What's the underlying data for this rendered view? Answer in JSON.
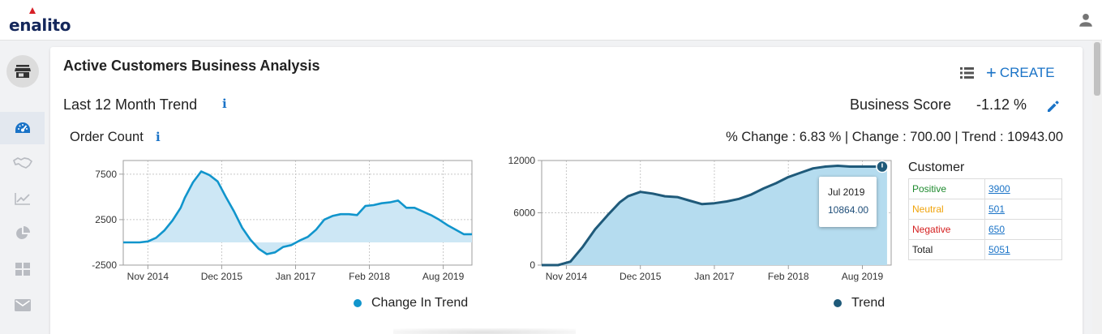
{
  "app": {
    "logo": "enalito",
    "icons": {
      "user": "user-icon",
      "store": "store-icon"
    }
  },
  "sidebar": {
    "items": [
      {
        "name": "dashboard",
        "icon": "speedometer-icon",
        "active": true
      },
      {
        "name": "deals",
        "icon": "handshake-icon",
        "active": false
      },
      {
        "name": "analytics",
        "icon": "line-chart-icon",
        "active": false
      },
      {
        "name": "reports",
        "icon": "pie-chart-icon",
        "active": false
      },
      {
        "name": "widgets",
        "icon": "grid-icon",
        "active": false
      },
      {
        "name": "mail",
        "icon": "mail-icon",
        "active": false
      }
    ]
  },
  "page": {
    "title": "Active Customers Business Analysis",
    "create_label": "CREATE",
    "section_title": "Last 12 Month Trend",
    "business_score_label": "Business Score",
    "business_score_value": "-1.12 %",
    "order_count_title": "Order Count",
    "stats_line": "% Change : 6.83 % | Change : 700.00 | Trend : 10943.00"
  },
  "colors": {
    "accent": "#1a73c7",
    "change_series": "#1195cc",
    "change_fill": "#cde7f5",
    "trend_series": "#1f5a7a",
    "trend_fill": "#b5dcef",
    "positive": "#1e8a2e",
    "neutral": "#f0a30a",
    "negative": "#d41e1e"
  },
  "chart_data": [
    {
      "type": "area",
      "x_ticks": [
        "Nov 2014",
        "Dec 2015",
        "Jan 2017",
        "Feb 2018",
        "Aug 2019"
      ],
      "y_ticks": [
        "7500",
        "2500",
        "-2500"
      ],
      "ylim": [
        -2500,
        9000
      ],
      "grid": true,
      "legend": "bottom",
      "series": [
        {
          "name": "Change In Trend",
          "x": [
            0,
            2,
            4,
            6,
            8,
            10,
            12,
            14,
            15,
            17,
            19,
            21,
            23,
            25,
            27,
            29,
            31,
            33,
            35,
            37,
            39,
            41,
            43,
            45,
            47,
            49,
            51,
            53,
            55,
            57,
            59,
            61,
            63,
            65,
            67,
            68,
            69,
            71,
            72,
            73,
            75,
            77,
            79,
            81,
            83,
            85
          ],
          "values": [
            0,
            0,
            0,
            100,
            500,
            1300,
            2400,
            3800,
            4900,
            6600,
            7800,
            7400,
            6700,
            5000,
            3400,
            1600,
            300,
            -700,
            -1300,
            -1100,
            -500,
            -300,
            200,
            600,
            1400,
            2500,
            2900,
            3100,
            3100,
            3000,
            4000,
            4100,
            4300,
            4400,
            4600,
            4200,
            3800,
            3800,
            3600,
            3400,
            3000,
            2500,
            1900,
            1400,
            900,
            900
          ]
        }
      ]
    },
    {
      "type": "area",
      "x_ticks": [
        "Nov 2014",
        "Dec 2015",
        "Jan 2017",
        "Feb 2018",
        "Aug 2019"
      ],
      "y_ticks": [
        "12000",
        "6000",
        "0"
      ],
      "ylim": [
        0,
        12000
      ],
      "grid": true,
      "legend": "bottom",
      "series": [
        {
          "name": "Trend",
          "x": [
            0,
            4,
            7,
            10,
            13,
            16,
            19,
            21,
            24,
            27,
            30,
            33,
            36,
            39,
            42,
            45,
            48,
            51,
            54,
            57,
            60,
            63,
            66,
            69,
            72,
            75,
            78,
            81,
            84
          ],
          "values": [
            0,
            0,
            400,
            2100,
            4100,
            5700,
            7200,
            7900,
            8400,
            8200,
            7900,
            7800,
            7400,
            7000,
            7100,
            7300,
            7600,
            8100,
            8800,
            9400,
            10100,
            10600,
            11100,
            11300,
            11400,
            11300,
            11300,
            11300,
            11300
          ]
        }
      ],
      "tooltip": {
        "date": "Jul 2019",
        "value": "10864.00"
      }
    }
  ],
  "legends": {
    "change": "Change In Trend",
    "trend": "Trend"
  },
  "customer": {
    "title": "Customer",
    "rows": [
      {
        "label": "Positive",
        "value": "3900"
      },
      {
        "label": "Neutral",
        "value": "501"
      },
      {
        "label": "Negative",
        "value": "650"
      },
      {
        "label": "Total",
        "value": "5051"
      }
    ]
  }
}
